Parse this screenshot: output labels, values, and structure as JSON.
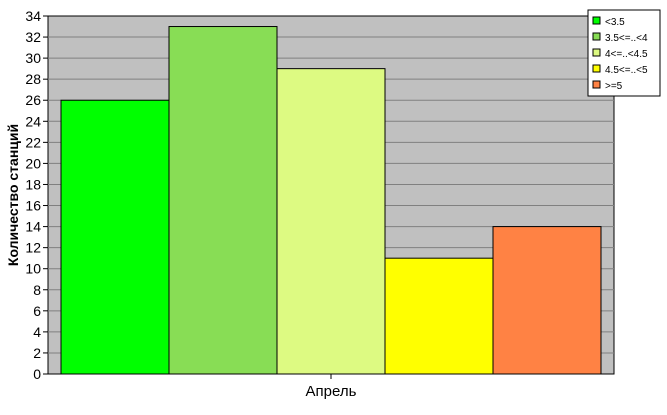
{
  "chart_data": {
    "type": "bar",
    "categories": [
      "Апрель"
    ],
    "series": [
      {
        "name": "<3.5",
        "values": [
          26
        ],
        "color": "#00ff00"
      },
      {
        "name": "3.5<=..<4",
        "values": [
          33
        ],
        "color": "#88dd55"
      },
      {
        "name": "4<=..<4.5",
        "values": [
          29
        ],
        "color": "#ddfa82"
      },
      {
        "name": "4.5<=..<5",
        "values": [
          11
        ],
        "color": "#ffff00"
      },
      {
        "name": ">=5",
        "values": [
          14
        ],
        "color": "#ff8244"
      }
    ],
    "ylabel": "Количество станций",
    "xlabel": "",
    "ylim": [
      0,
      34
    ],
    "yticks": [
      0,
      2,
      4,
      6,
      8,
      10,
      12,
      14,
      16,
      18,
      20,
      22,
      24,
      26,
      28,
      30,
      32,
      34
    ],
    "grid": true,
    "legend": "top-right",
    "plot_background": "#c0c0c0"
  }
}
